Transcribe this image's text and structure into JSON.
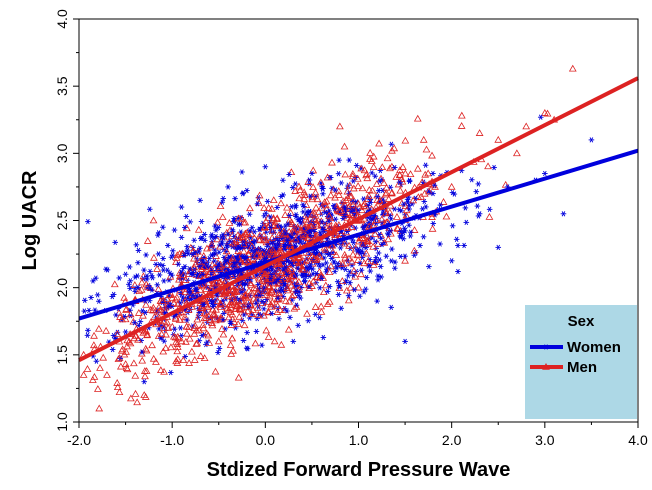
{
  "chart_data": {
    "type": "scatter",
    "xlabel": "Stdized Forward Pressure Wave",
    "ylabel": "Log UACR",
    "xlim": [
      -2.0,
      4.0
    ],
    "ylim": [
      1.0,
      4.0
    ],
    "x_ticks": [
      "-2.0",
      "-1.0",
      "0.0",
      "1.0",
      "2.0",
      "3.0",
      "4.0"
    ],
    "y_ticks": [
      "1.0",
      "1.5",
      "2.0",
      "2.5",
      "3.0",
      "3.5",
      "4.0"
    ],
    "grid": false,
    "legend": {
      "title": "Sex",
      "position": "bottom-right",
      "background": "#add8e6",
      "entries": [
        "Women",
        "Men"
      ]
    },
    "series": [
      {
        "name": "Women",
        "marker": "asterisk",
        "color": "#0000dd",
        "fit_line": {
          "x": [
            -2.0,
            4.0
          ],
          "y": [
            1.77,
            3.02
          ]
        },
        "scatter_sd": 0.22,
        "points": [
          [
            -1.85,
            2.05
          ],
          [
            -1.6,
            1.62
          ],
          [
            -1.5,
            2.1
          ],
          [
            -1.3,
            1.3
          ],
          [
            -1.1,
            2.45
          ],
          [
            -0.9,
            2.6
          ],
          [
            -0.7,
            2.65
          ],
          [
            -0.4,
            2.75
          ],
          [
            0.0,
            2.9
          ],
          [
            0.5,
            2.85
          ],
          [
            0.9,
            2.95
          ],
          [
            1.5,
            1.6
          ],
          [
            1.8,
            2.7
          ],
          [
            2.0,
            2.2
          ],
          [
            2.3,
            2.55
          ],
          [
            2.6,
            2.75
          ],
          [
            2.9,
            2.8
          ],
          [
            3.2,
            2.55
          ],
          [
            3.5,
            3.1
          ],
          [
            0.3,
            1.6
          ],
          [
            -0.2,
            1.55
          ],
          [
            1.2,
            1.9
          ],
          [
            2.5,
            2.3
          ],
          [
            3.0,
            2.85
          ]
        ]
      },
      {
        "name": "Men",
        "marker": "triangle",
        "color": "#dd2222",
        "fit_line": {
          "x": [
            -2.0,
            4.0
          ],
          "y": [
            1.46,
            3.56
          ]
        },
        "scatter_sd": 0.22,
        "points": [
          [
            -1.95,
            1.5
          ],
          [
            -1.95,
            1.35
          ],
          [
            -1.7,
            1.35
          ],
          [
            -1.3,
            1.2
          ],
          [
            -1.2,
            2.5
          ],
          [
            0.8,
            3.2
          ],
          [
            0.85,
            3.05
          ],
          [
            1.7,
            3.1
          ],
          [
            2.3,
            3.15
          ],
          [
            2.5,
            3.1
          ],
          [
            2.8,
            3.2
          ],
          [
            3.3,
            3.63
          ],
          [
            3.1,
            3.25
          ],
          [
            2.0,
            2.75
          ],
          [
            0.1,
            1.6
          ],
          [
            -0.5,
            1.6
          ],
          [
            1.0,
            2.0
          ],
          [
            1.5,
            2.2
          ],
          [
            2.7,
            3.0
          ],
          [
            3.0,
            3.3
          ]
        ]
      }
    ]
  }
}
